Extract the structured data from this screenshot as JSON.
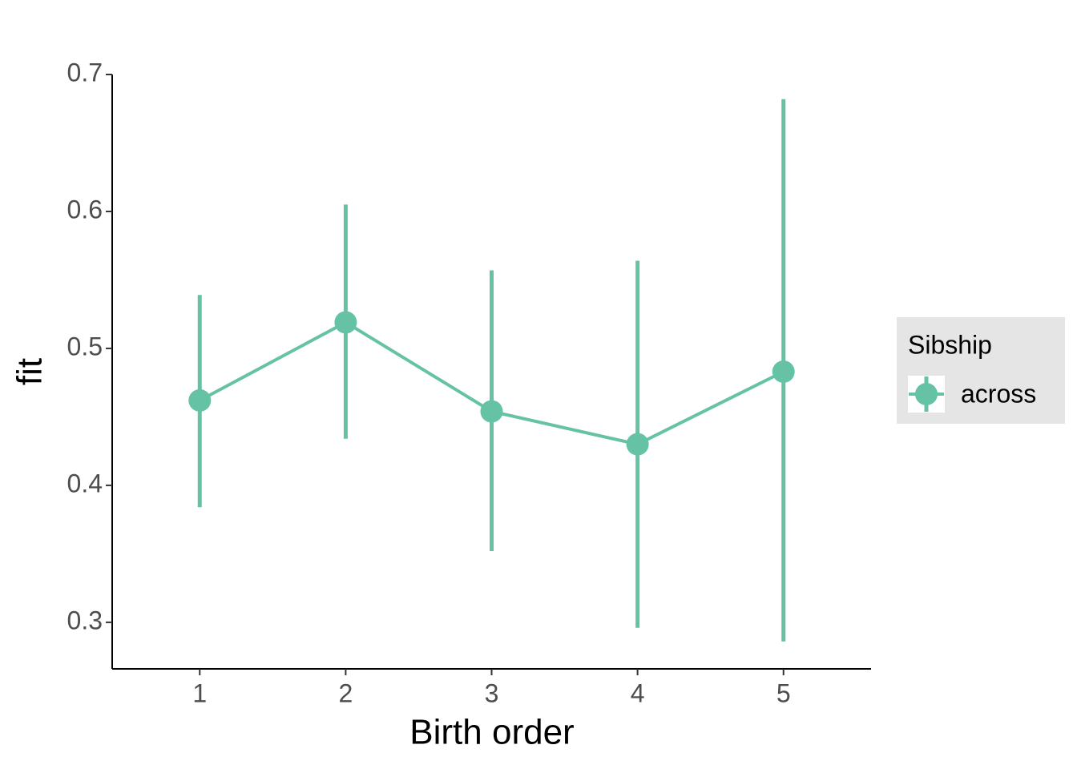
{
  "chart_data": {
    "type": "line",
    "x_label": "Birth order",
    "y_label": "fit",
    "x": [
      1,
      2,
      3,
      4,
      5
    ],
    "series": [
      {
        "name": "across",
        "color": "#66c2a5",
        "values": [
          0.462,
          0.519,
          0.454,
          0.43,
          0.483
        ],
        "lower": [
          0.384,
          0.434,
          0.352,
          0.296,
          0.286
        ],
        "upper": [
          0.539,
          0.605,
          0.557,
          0.564,
          0.682
        ]
      }
    ],
    "xlim": [
      0.4,
      5.6
    ],
    "xticks": [
      1,
      2,
      3,
      4,
      5
    ],
    "ylim": [
      0.266,
      0.7
    ],
    "yticks": [
      0.3,
      0.4,
      0.5,
      0.6,
      0.7
    ],
    "legend_title": "Sibship",
    "legend_position": "right",
    "grid": false
  }
}
